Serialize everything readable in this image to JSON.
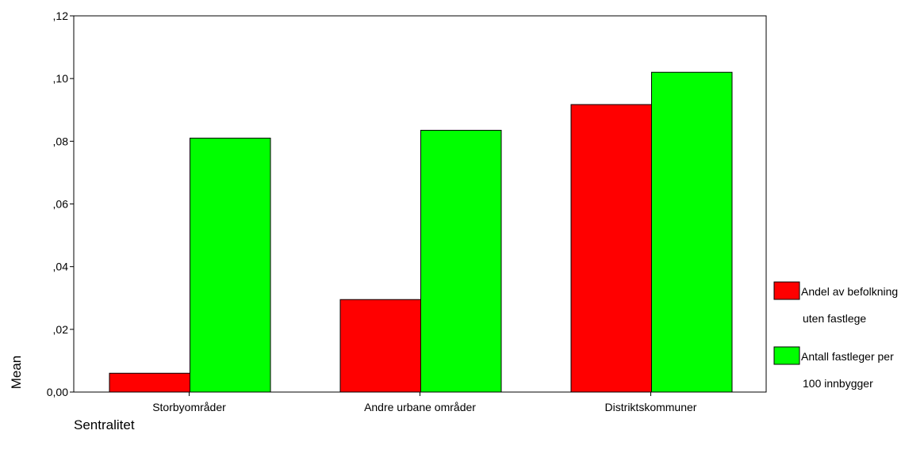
{
  "chart_data": {
    "type": "bar",
    "ylabel": "Mean",
    "xlabel": "Sentralitet",
    "categories": [
      "Storbyområder",
      "Andre urbane områder",
      "Distriktskommuner"
    ],
    "ylim": [
      0,
      0.12
    ],
    "yticks": [
      {
        "value": 0.0,
        "label": "0,00"
      },
      {
        "value": 0.02,
        "label": ",02"
      },
      {
        "value": 0.04,
        "label": ",04"
      },
      {
        "value": 0.06,
        "label": ",06"
      },
      {
        "value": 0.08,
        "label": ",08"
      },
      {
        "value": 0.1,
        "label": ",10"
      },
      {
        "value": 0.12,
        "label": ",12"
      }
    ],
    "series": [
      {
        "name": "Andel av befolkning uten fastlege",
        "legend_lines": [
          "Andel av befolkning",
          "uten fastlege"
        ],
        "color": "#ff0000",
        "values": [
          0.006,
          0.0295,
          0.0917
        ]
      },
      {
        "name": "Antall fastleger per 100 innbygger",
        "legend_lines": [
          "Antall fastleger per",
          "100 innbygger"
        ],
        "color": "#00ff00",
        "values": [
          0.081,
          0.0835,
          0.102
        ]
      }
    ],
    "grid": false,
    "legend_position": "right"
  }
}
